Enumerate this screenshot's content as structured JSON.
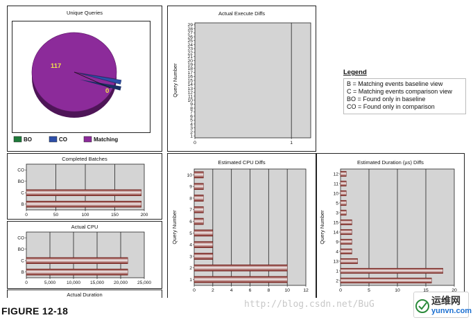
{
  "caption": "FIGURE 12-18",
  "watermark": "http://blog.csdn.net/BuG",
  "logo": {
    "cn": "运维网",
    "en": "yunvn.com"
  },
  "legend": {
    "title": "Legend",
    "items": [
      "B = Matching events baseline view",
      "C = Matching events comparison view",
      "BO = Found only in baseline",
      "CO = Found only in comparison"
    ]
  },
  "colors": {
    "bar_dark": "#7a1a14",
    "bar_light": "#f2eeee",
    "plot_bg": "#d4d4d4",
    "pie_main": "#8c2b9a",
    "pie_small": "#2d4fa8"
  },
  "chart_data": [
    {
      "id": "unique-queries",
      "type": "pie",
      "title": "Unique Queries",
      "slices": [
        {
          "label": "BO",
          "value": 0,
          "color": "#1e7a3a"
        },
        {
          "label": "CO",
          "value": 2,
          "color": "#2d4fa8"
        },
        {
          "label": "Matching",
          "value": 117,
          "color": "#8c2b9a"
        }
      ],
      "data_labels": [
        "117",
        "0"
      ],
      "legend_position": "bottom"
    },
    {
      "id": "completed-batches",
      "type": "bar",
      "orientation": "horizontal",
      "title": "Completed Batches",
      "categories": [
        "CO",
        "BO",
        "C",
        "B"
      ],
      "values": [
        0,
        0,
        195,
        195
      ],
      "xlim": [
        0,
        200
      ],
      "xticks": [
        "0",
        "50",
        "100",
        "150",
        "200"
      ]
    },
    {
      "id": "actual-cpu",
      "type": "bar",
      "orientation": "horizontal",
      "title": "Actual CPU",
      "categories": [
        "CO",
        "BO",
        "C",
        "B"
      ],
      "values": [
        0,
        0,
        21500,
        21500
      ],
      "xlim": [
        0,
        25000
      ],
      "xticks": [
        "0",
        "5,000",
        "10,000",
        "15,000",
        "20,000",
        "25,000"
      ]
    },
    {
      "id": "actual-duration",
      "type": "bar",
      "title": "Actual Duration"
    },
    {
      "id": "actual-execute-diffs",
      "type": "bar",
      "orientation": "horizontal",
      "title": "Actual Execute Diffs",
      "ylabel": "Query Number",
      "categories": [
        "29",
        "28",
        "27",
        "26",
        "25",
        "24",
        "23",
        "22",
        "21",
        "20",
        "19",
        "18",
        "17",
        "16",
        "15",
        "14",
        "13",
        "12",
        "11",
        "10",
        "9",
        "8",
        "7",
        "6",
        "5",
        "4",
        "3",
        "2",
        "1"
      ],
      "xlim": [
        0,
        1.2
      ],
      "xticks": [
        "0",
        "1"
      ],
      "xtick_values": [
        0,
        1
      ]
    },
    {
      "id": "estimated-cpu-diffs",
      "type": "bar",
      "orientation": "horizontal",
      "title": "Estimated CPU Diffs",
      "ylabel": "Query Number",
      "categories": [
        "10",
        "9",
        "8",
        "7",
        "6",
        "5",
        "4",
        "3",
        "2",
        "1"
      ],
      "values": [
        1,
        1,
        1,
        1,
        1,
        2,
        2,
        2,
        10,
        10
      ],
      "xlim": [
        0,
        12
      ],
      "xticks": [
        "0",
        "2",
        "4",
        "6",
        "8",
        "10",
        "12"
      ]
    },
    {
      "id": "estimated-duration-diffs",
      "type": "bar",
      "orientation": "horizontal",
      "title": "Estimated Duration (µs) Diffs",
      "ylabel": "Query Number",
      "categories": [
        "12",
        "11",
        "10",
        "5",
        "3",
        "15",
        "14",
        "9",
        "4",
        "13",
        "1",
        "2"
      ],
      "values": [
        1,
        1,
        1,
        1,
        1,
        2,
        2,
        2,
        2,
        3,
        18,
        16
      ],
      "xlim": [
        0,
        20
      ],
      "xticks": [
        "0",
        "5",
        "10",
        "15",
        "20"
      ]
    }
  ]
}
